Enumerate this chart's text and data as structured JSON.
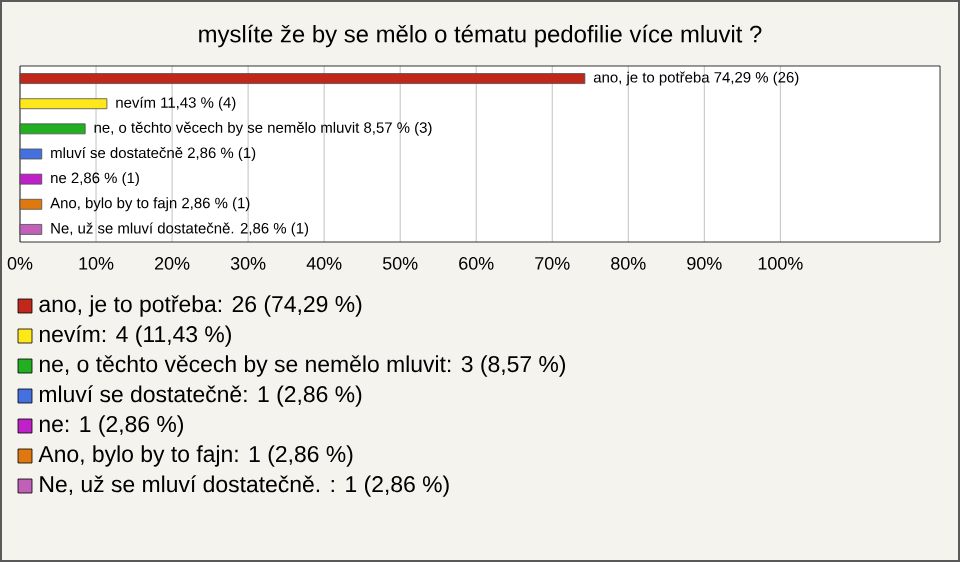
{
  "chart_data": {
    "type": "bar",
    "orientation": "horizontal",
    "title": "myslíte že by se mělo o tématu pedofilie více mluvit ?",
    "categories": [
      null,
      null,
      null,
      null,
      null,
      null,
      null
    ],
    "values": [
      74.29,
      11.43,
      8.57,
      2.86,
      2.86,
      2.86,
      2.86
    ],
    "colors": [
      "#c0281c",
      "#ffe81a",
      "#22b022",
      "#4470e0",
      "#c020c8",
      "#e07810",
      "#c060b8"
    ],
    "value_labels": [
      "ano, je to potřeba 74,29 % (26)",
      "nevím 11,43 % (4)",
      "ne, o těchto věcech by se nemělo mluvit 8,57 % (3)",
      "mluví se dostatečně 2,86 % (1)",
      "ne 2,86 % (1)",
      "Ano, bylo by to fajn 2,86 % (1)",
      "Ne, už se mluví dostatečně.  2,86 % (1)"
    ],
    "xlim": [
      0,
      121
    ],
    "xticks": [
      {
        "value": 0,
        "label": "0%"
      },
      {
        "value": 10,
        "label": "10%"
      },
      {
        "value": 20,
        "label": "20%"
      },
      {
        "value": 30,
        "label": "30%"
      },
      {
        "value": 40,
        "label": "40%"
      },
      {
        "value": 50,
        "label": "50%"
      },
      {
        "value": 60,
        "label": "60%"
      },
      {
        "value": 70,
        "label": "70%"
      },
      {
        "value": 80,
        "label": "80%"
      },
      {
        "value": 90,
        "label": "90%"
      },
      {
        "value": 100,
        "label": "100%"
      }
    ],
    "grid": "x",
    "annotations": [
      "ano, je to potřeba: 26 (74,29 %)",
      "nevím: 4 (11,43 %)",
      "ne, o těchto věcech by se nemělo mluvit: 3 (8,57 %)",
      "mluví se dostatečně: 1 (2,86 %)",
      "ne: 1 (2,86 %)",
      "Ano, bylo by to fajn: 1 (2,86 %)",
      "Ne, už se mluví dostatečně. : 1 (2,86 %)"
    ]
  }
}
